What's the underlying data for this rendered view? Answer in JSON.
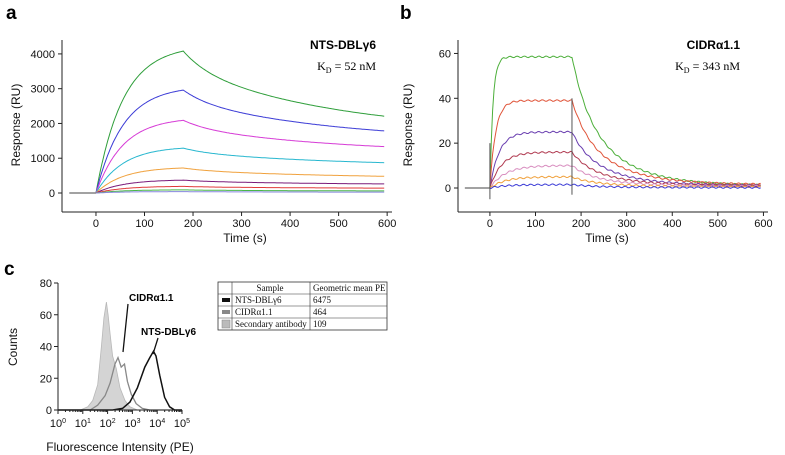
{
  "panels": {
    "a": "a",
    "b": "b",
    "c": "c"
  },
  "chart_data": [
    {
      "id": "a",
      "type": "line",
      "title": "NTS-DBLγ6",
      "kd_label": "K",
      "kd_sub": "D",
      "kd_value": " = 52 nM",
      "xlabel": "Time (s)",
      "ylabel": "Response (RU)",
      "xlim": [
        -70,
        610
      ],
      "ylim": [
        -250,
        4400
      ],
      "xticks": [
        0,
        100,
        200,
        300,
        400,
        500,
        600
      ],
      "yticks": [
        0,
        1000,
        2000,
        3000,
        4000
      ],
      "assoc_end": 180,
      "series": [
        {
          "color": "#2e9e3a",
          "peak": 4080,
          "end": 2200,
          "kon": 0.018
        },
        {
          "color": "#3b3bd6",
          "peak": 2960,
          "end": 1780,
          "kon": 0.018
        },
        {
          "color": "#d63bd6",
          "peak": 2090,
          "end": 1330,
          "kon": 0.018
        },
        {
          "color": "#27b7cf",
          "peak": 1290,
          "end": 870,
          "kon": 0.018
        },
        {
          "color": "#f0a13c",
          "peak": 720,
          "end": 480,
          "kon": 0.018
        },
        {
          "color": "#7a1a7a",
          "peak": 370,
          "end": 260,
          "kon": 0.018
        },
        {
          "color": "#e03a3a",
          "peak": 190,
          "end": 140,
          "kon": 0.018
        },
        {
          "color": "#49b649",
          "peak": 90,
          "end": 60,
          "kon": 0.018
        },
        {
          "color": "#8888dd",
          "peak": 40,
          "end": 25,
          "kon": 0.018
        }
      ]
    },
    {
      "id": "b",
      "type": "line",
      "title": "CIDRα1.1",
      "kd_label": "K",
      "kd_sub": "D",
      "kd_value": " = 343 nM",
      "xlabel": "Time (s)",
      "ylabel": "Response (RU)",
      "xlim": [
        -70,
        610
      ],
      "ylim": [
        -6,
        66
      ],
      "xticks": [
        0,
        100,
        200,
        300,
        400,
        500,
        600
      ],
      "yticks": [
        0,
        20,
        40,
        60
      ],
      "assoc_end": 180,
      "series": [
        {
          "color": "#4caf3a",
          "peak": 58.5,
          "end": 1.0,
          "kon": 0.15
        },
        {
          "color": "#e0553a",
          "peak": 39,
          "end": 1.5,
          "kon": 0.08
        },
        {
          "color": "#6a3fb0",
          "peak": 25,
          "end": 1.0,
          "kon": 0.05
        },
        {
          "color": "#b03a50",
          "peak": 16,
          "end": 1.0,
          "kon": 0.04
        },
        {
          "color": "#d98fc0",
          "peak": 10,
          "end": 0.8,
          "kon": 0.03
        },
        {
          "color": "#f0a13c",
          "peak": 5,
          "end": 0.5,
          "kon": 0.03
        },
        {
          "color": "#3b3bd6",
          "peak": 1.5,
          "end": 0.2,
          "kon": 0.03
        }
      ]
    },
    {
      "id": "c",
      "type": "histogram",
      "xlabel": "Fluorescence Intensity (PE)",
      "ylabel": "Counts",
      "xscale": "log",
      "xlim_log10": [
        0,
        5
      ],
      "ylim": [
        0,
        80
      ],
      "yticks": [
        0,
        20,
        40,
        60,
        80
      ],
      "xticks_log10": [
        0,
        1,
        2,
        3,
        4,
        5
      ],
      "series": [
        {
          "name": "Secondary antibody",
          "style": "filled-gray",
          "points": [
            [
              0,
              0
            ],
            [
              0.9,
              0
            ],
            [
              1.2,
              2
            ],
            [
              1.4,
              6
            ],
            [
              1.6,
              16
            ],
            [
              1.75,
              40
            ],
            [
              1.85,
              58
            ],
            [
              1.95,
              68
            ],
            [
              2.02,
              60
            ],
            [
              2.1,
              48
            ],
            [
              2.2,
              34
            ],
            [
              2.35,
              26
            ],
            [
              2.5,
              14
            ],
            [
              2.7,
              6
            ],
            [
              2.9,
              2
            ],
            [
              3.2,
              0
            ],
            [
              5,
              0
            ]
          ]
        },
        {
          "name": "CIDRα1.1",
          "style": "gray-line",
          "points": [
            [
              0,
              0
            ],
            [
              1.3,
              0
            ],
            [
              1.6,
              3
            ],
            [
              1.9,
              9
            ],
            [
              2.1,
              17
            ],
            [
              2.3,
              29
            ],
            [
              2.42,
              33
            ],
            [
              2.55,
              27
            ],
            [
              2.68,
              29
            ],
            [
              2.8,
              18
            ],
            [
              2.95,
              10
            ],
            [
              3.15,
              4
            ],
            [
              3.4,
              1
            ],
            [
              3.7,
              0
            ],
            [
              5,
              0
            ]
          ]
        },
        {
          "name": "NTS-DBLγ6",
          "style": "black-line",
          "points": [
            [
              0,
              0
            ],
            [
              2.2,
              0
            ],
            [
              2.6,
              1
            ],
            [
              2.9,
              5
            ],
            [
              3.2,
              14
            ],
            [
              3.5,
              27
            ],
            [
              3.7,
              33
            ],
            [
              3.85,
              37
            ],
            [
              3.95,
              34
            ],
            [
              4.1,
              22
            ],
            [
              4.3,
              8
            ],
            [
              4.5,
              2
            ],
            [
              4.7,
              0
            ],
            [
              5,
              0
            ]
          ]
        }
      ],
      "annotations": [
        {
          "text": "CIDRα1.1"
        },
        {
          "text": "NTS-DBLγ6"
        }
      ]
    }
  ],
  "table": {
    "headers": [
      "Sample",
      "Geometric mean PE"
    ],
    "rows": [
      {
        "sample": "NTS-DBLγ6",
        "value": "6475",
        "swatch": "#111111"
      },
      {
        "sample": "CIDRα1.1",
        "value": "464",
        "swatch": "#888888"
      },
      {
        "sample": "Secondary antibody",
        "value": "109",
        "swatch": "#bbbbbb"
      }
    ]
  }
}
